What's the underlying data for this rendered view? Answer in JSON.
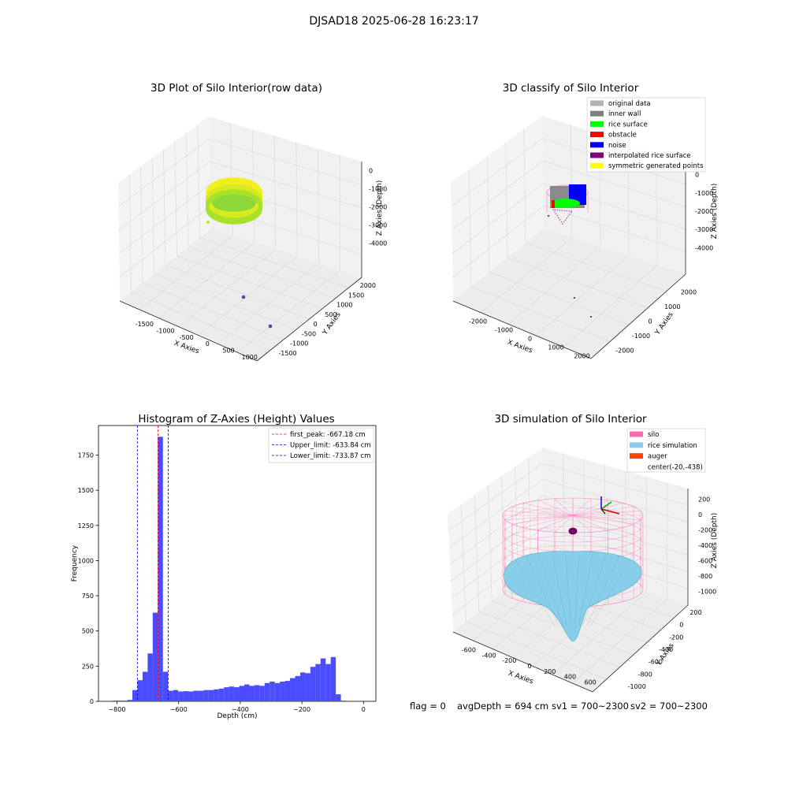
{
  "figure": {
    "suptitle": "DJSAD18 2025-06-28 16:23:17"
  },
  "status": {
    "flag": "flag = 0",
    "avg_depth": "avgDepth = 694 cm",
    "sv1": "sv1 = 700~2300",
    "sv2": "sv2 = 700~2300"
  },
  "colors": {
    "histogram_bar": "#4b4bff",
    "first_peak": "#ff0000",
    "limits": "#0000cc",
    "silo": "#ff69b4",
    "rice_simulation": "#87ceeb",
    "auger": "#ff4500",
    "grid": "#e0e0e0",
    "pane": "#f2f2f2"
  },
  "chart_data": [
    {
      "type": "scatter3d",
      "title": "3D Plot of Silo Interior(row data)",
      "xlabel": "X Axies",
      "ylabel": "Y Axies",
      "zlabel": "Z Axies (Depth)",
      "xticks": [
        "-1500",
        "-1000",
        "-500",
        "0",
        "500",
        "1000"
      ],
      "yticks": [
        "-1500",
        "-1000",
        "-500",
        "0",
        "500",
        "1000",
        "1500",
        "2000"
      ],
      "zticks": [
        "0",
        "-1000",
        "-2000",
        "-3000",
        "-4000"
      ],
      "series": [
        {
          "color": "#c8e61e",
          "description_points": "ring"
        },
        {
          "color": "#6a3d9a",
          "points": [
            [
              330,
              -1000,
              -4100
            ],
            [
              1000,
              -1500,
              -4300
            ]
          ]
        }
      ]
    },
    {
      "type": "scatter3d",
      "title": "3D classify of Silo Interior",
      "xlabel": "X Axies",
      "ylabel": "Y Axies",
      "zlabel": "Z Axies (Depth)",
      "xticks": [
        "-2000",
        "-1000",
        "0",
        "1000",
        "2000"
      ],
      "yticks": [
        "-2000",
        "-1000",
        "0",
        "1000",
        "2000"
      ],
      "zticks": [
        "0",
        "-1000",
        "-2000",
        "-3000",
        "-4000"
      ],
      "legend": [
        {
          "label": "original data",
          "color": "#b3b3b3"
        },
        {
          "label": "inner wall",
          "color": "#808080"
        },
        {
          "label": "rice surface",
          "color": "#00ff00"
        },
        {
          "label": "obstacle",
          "color": "#ff0000"
        },
        {
          "label": "noise",
          "color": "#0000ff"
        },
        {
          "label": "interpolated rice surface",
          "color": "#800080"
        },
        {
          "label": "symmetric generated points",
          "color": "#ffff00"
        }
      ]
    },
    {
      "type": "bar",
      "title": "Histogram of Z-Axies (Height) Values",
      "xlabel": "Depth (cm)",
      "ylabel": "Frequency",
      "xlim": [
        -860,
        40
      ],
      "ylim": [
        0,
        1960
      ],
      "xticks": [
        -800,
        -600,
        -400,
        -200,
        0
      ],
      "yticks": [
        0,
        250,
        500,
        750,
        1000,
        1250,
        1500,
        1750
      ],
      "bin_width": 16.5,
      "bin_starts": [
        -816,
        -799.5,
        -783,
        -766.5,
        -750,
        -733.5,
        -717,
        -700.5,
        -684,
        -667.5,
        -651,
        -634.5,
        -618,
        -601.5,
        -585,
        -568.5,
        -552,
        -535.5,
        -519,
        -502.5,
        -486,
        -469.5,
        -453,
        -436.5,
        -420,
        -403.5,
        -387,
        -370.5,
        -354,
        -337.5,
        -321,
        -304.5,
        -288,
        -271.5,
        -255,
        -238.5,
        -222,
        -205.5,
        -189,
        -172.5,
        -156,
        -139.5,
        -123,
        -106.5,
        -90,
        -73.5,
        -57,
        -40.5,
        -24
      ],
      "values": [
        5,
        5,
        5,
        10,
        80,
        150,
        210,
        340,
        630,
        1880,
        210,
        75,
        80,
        70,
        72,
        70,
        75,
        75,
        80,
        80,
        85,
        90,
        100,
        105,
        100,
        110,
        120,
        110,
        115,
        110,
        130,
        140,
        130,
        140,
        145,
        165,
        180,
        205,
        200,
        245,
        265,
        305,
        265,
        315,
        50,
        5,
        0,
        0,
        0
      ],
      "vlines": [
        {
          "label": "first_peak: -667.18 cm",
          "x": -667.18,
          "color": "#ff0000"
        },
        {
          "label": "Upper_limit: -633.84 cm",
          "x": -633.84,
          "color": "#0000cc"
        },
        {
          "label": "Lower_limit: -733.87 cm",
          "x": -733.87,
          "color": "#0000cc"
        }
      ],
      "legend_placement": "top-right"
    },
    {
      "type": "surface3d",
      "title": "3D simulation of Silo Interior",
      "xlabel": "X Axies",
      "ylabel": "Y Axies",
      "zlabel": "Z Axies (Depth)",
      "xticks": [
        "-600",
        "-400",
        "-200",
        "0",
        "200",
        "400",
        "600"
      ],
      "yticks": [
        "-1000",
        "-800",
        "-600",
        "-400",
        "-200",
        "0",
        "200"
      ],
      "zticks": [
        "200",
        "0",
        "-200",
        "-400",
        "-600",
        "-800",
        "-1000"
      ],
      "legend": [
        {
          "label": "silo",
          "color": "#ff69b4"
        },
        {
          "label": "rice simulation",
          "color": "#87ceeb"
        },
        {
          "label": "auger",
          "color": "#ff4500"
        },
        {
          "label": "center(-20,-438)",
          "color": ""
        }
      ]
    }
  ]
}
